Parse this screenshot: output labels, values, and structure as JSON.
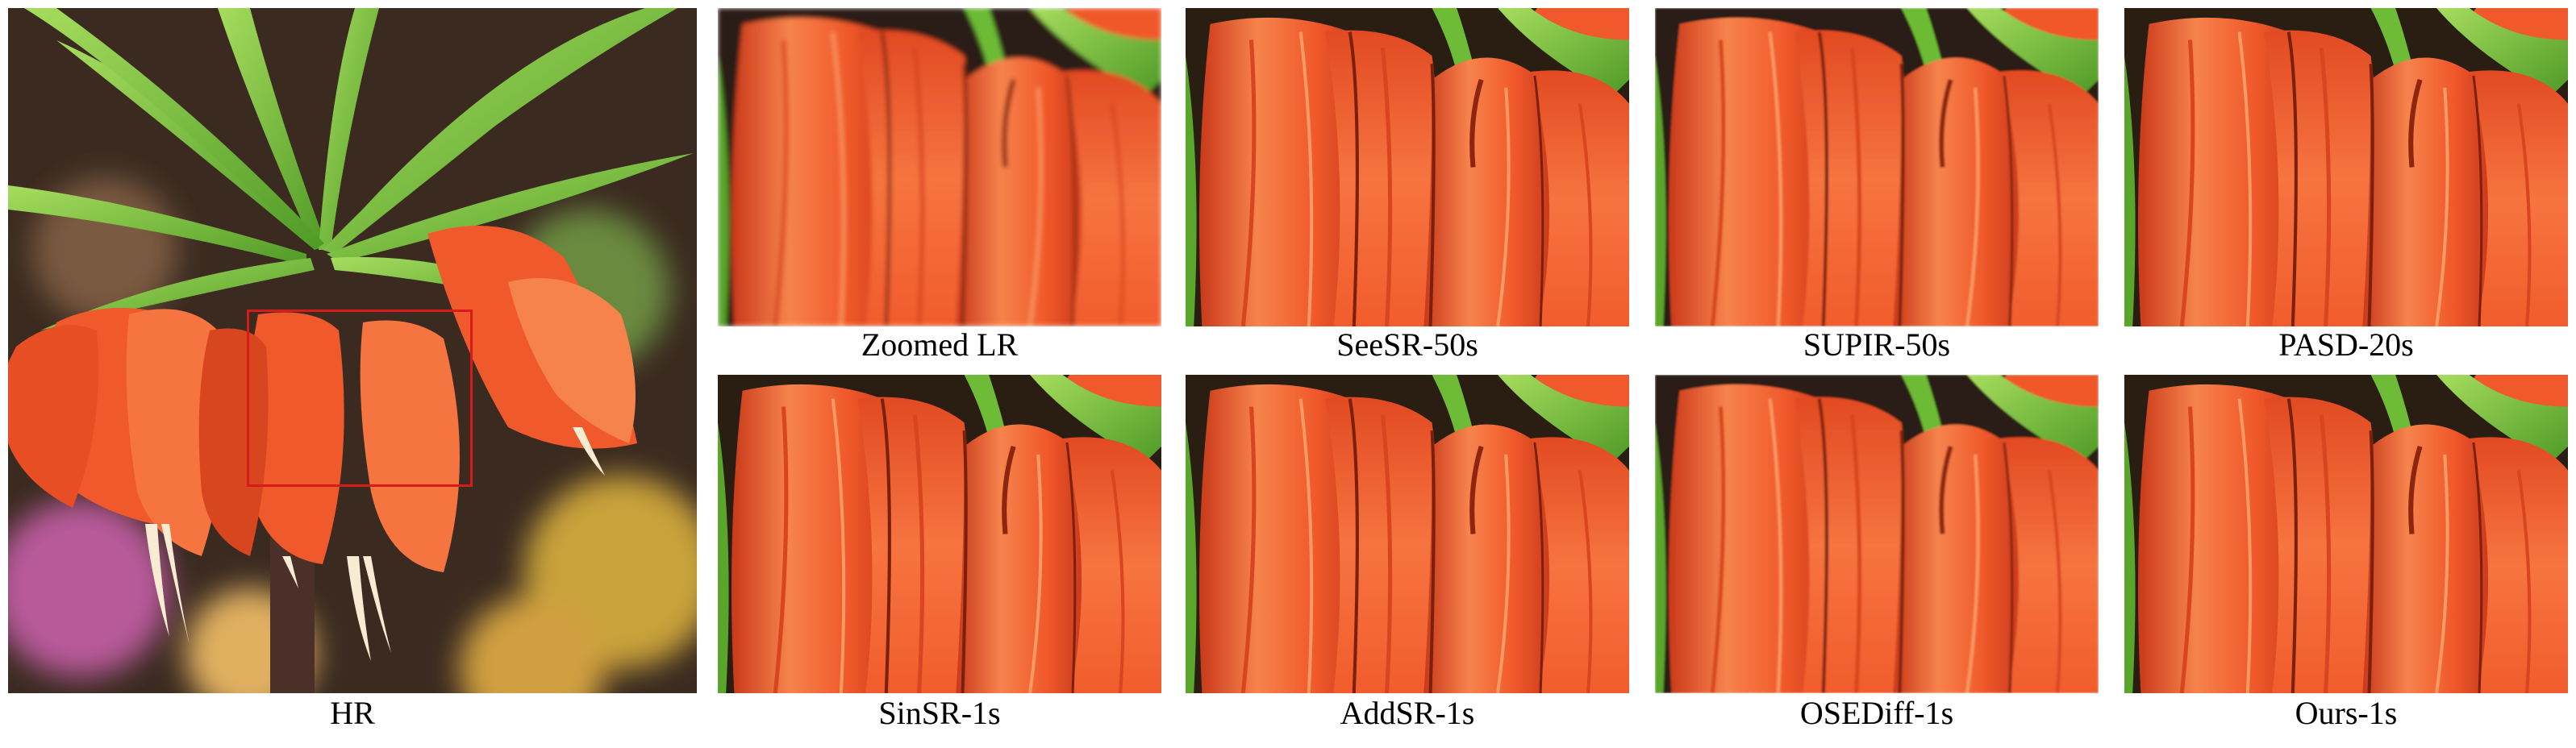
{
  "figure": {
    "hr_label": "HR",
    "colors": {
      "petal_base": "#f0592b",
      "petal_light": "#f7834c",
      "petal_dark": "#c9391a",
      "leaf_green": "#6dbb36",
      "leaf_light": "#a6dd5e",
      "background_dark": "#2a1e12",
      "roi_box": "#d71a1a"
    },
    "crops": [
      {
        "label": "Zoomed LR"
      },
      {
        "label": "SeeSR-50s"
      },
      {
        "label": "SUPIR-50s"
      },
      {
        "label": "PASD-20s"
      },
      {
        "label": "SinSR-1s"
      },
      {
        "label": "AddSR-1s"
      },
      {
        "label": "OSEDiff-1s"
      },
      {
        "label": "Ours-1s"
      }
    ]
  }
}
